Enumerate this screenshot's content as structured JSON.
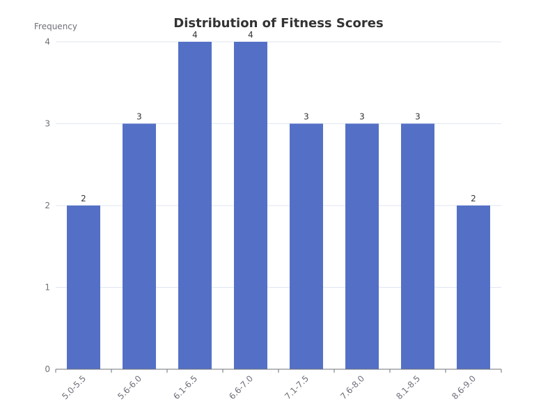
{
  "chart_data": {
    "type": "bar",
    "title": "Distribution of Fitness Scores",
    "xlabel": "",
    "ylabel": "Frequency",
    "categories": [
      "5.0-5.5",
      "5.6-6.0",
      "6.1-6.5",
      "6.6-7.0",
      "7.1-7.5",
      "7.6-8.0",
      "8.1-8.5",
      "8.6-9.0"
    ],
    "values": [
      2,
      3,
      4,
      4,
      3,
      3,
      3,
      2
    ],
    "ylim": [
      0,
      4
    ],
    "yticks": [
      0,
      1,
      2,
      3,
      4
    ],
    "grid": true,
    "legend": "none",
    "bar_color": "#5470c6",
    "data_labels": true
  }
}
